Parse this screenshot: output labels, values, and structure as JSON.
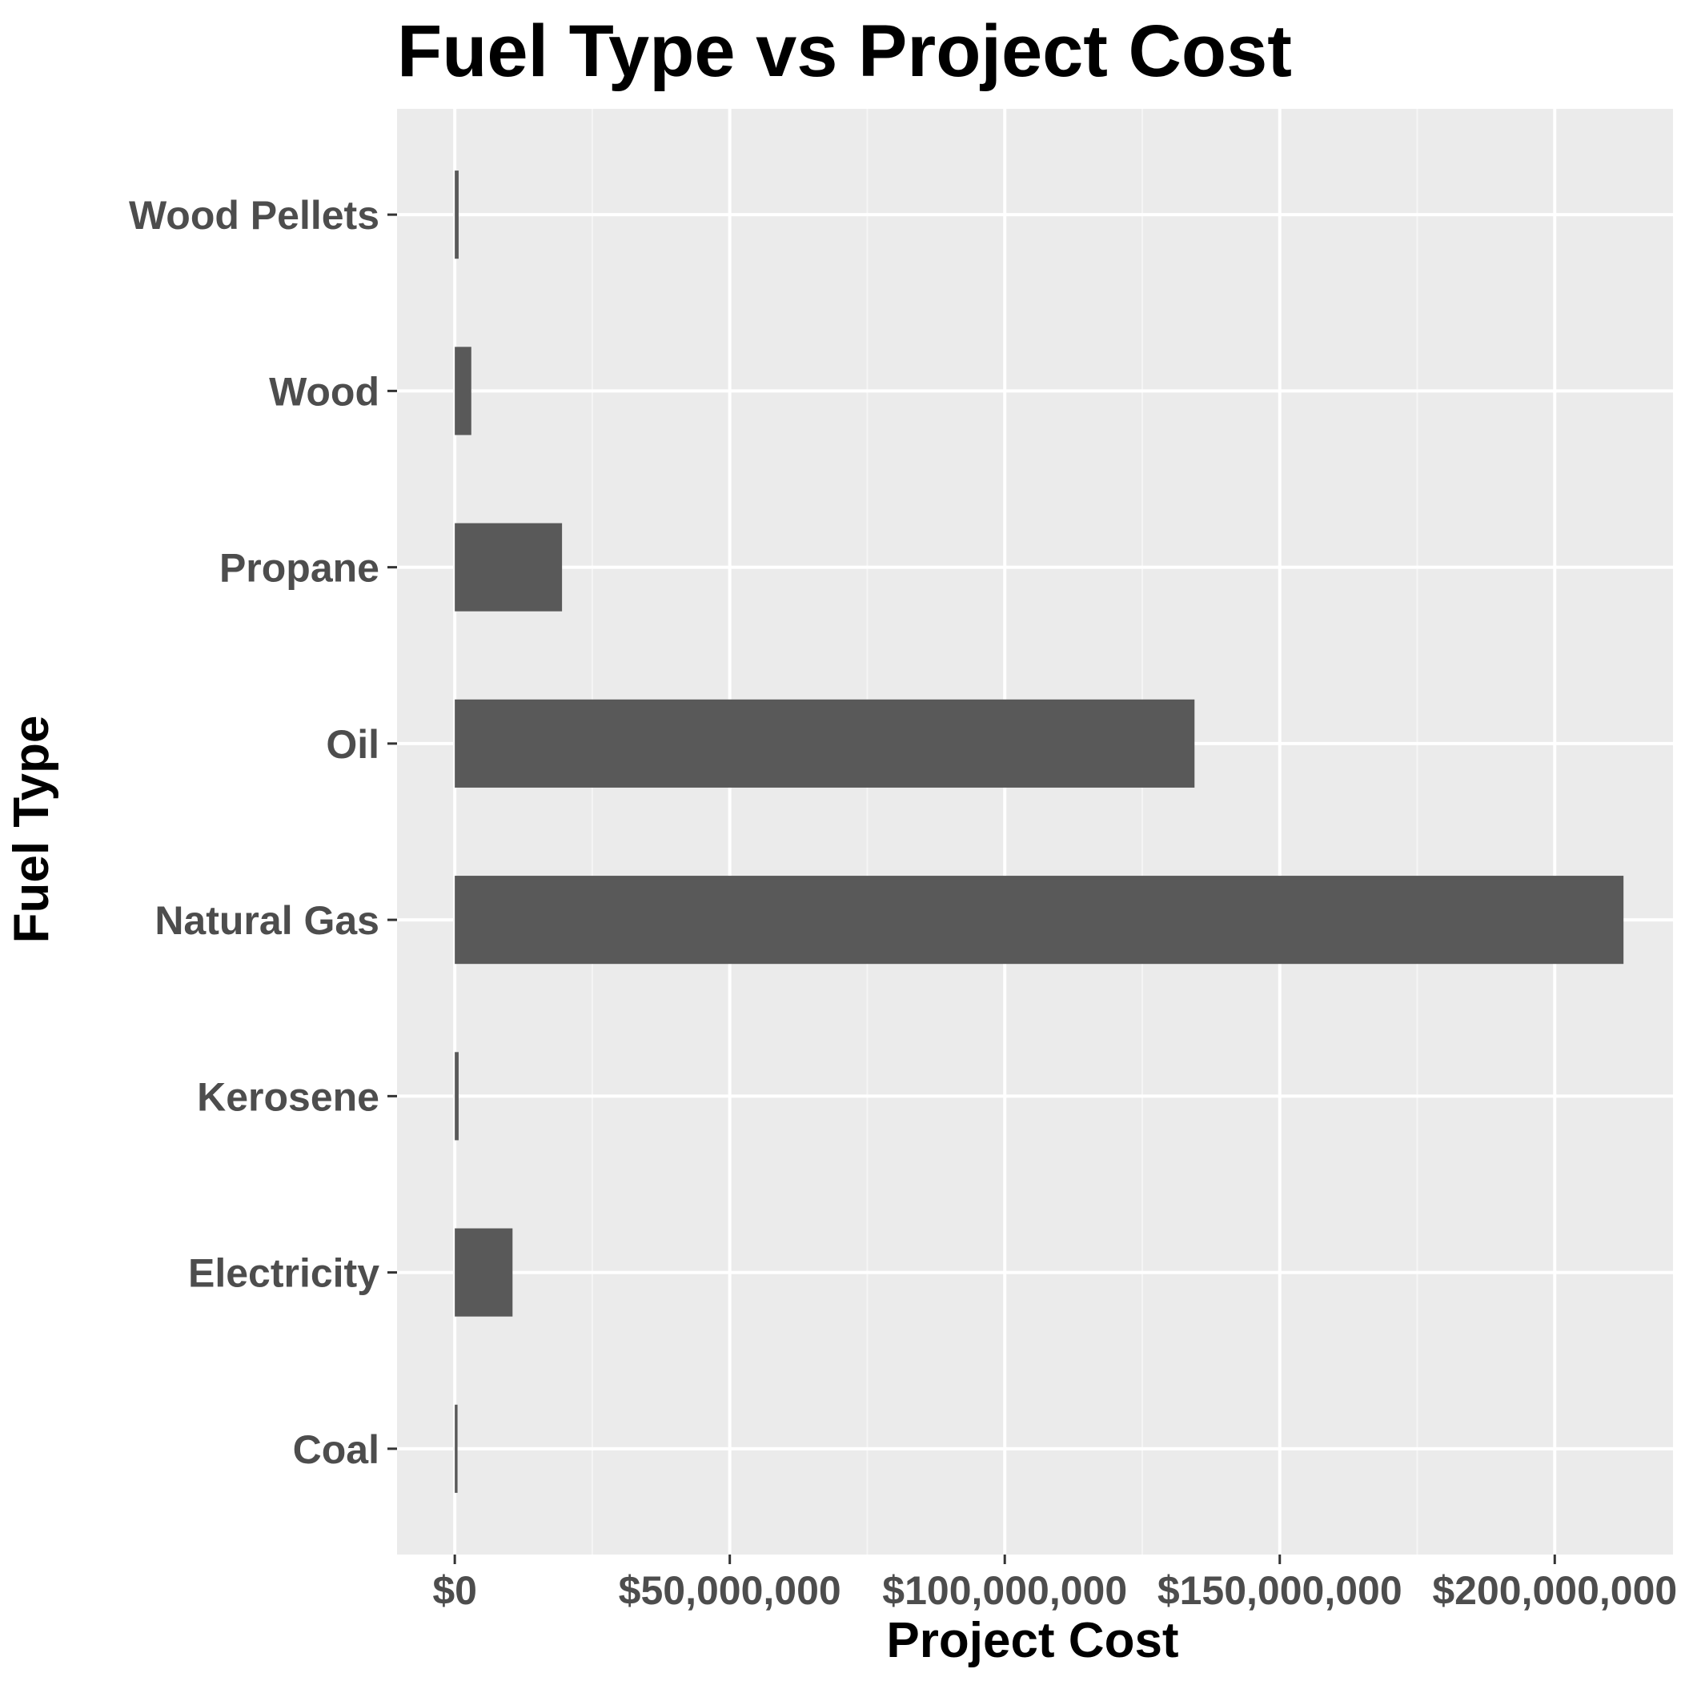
{
  "colors": {
    "panel_background": "#ebebeb",
    "grid_major": "#ffffff",
    "grid_minor": "#f5f5f5",
    "bar_fill": "#595959",
    "tick_text": "#4d4d4d",
    "tick_mark": "#333333"
  },
  "chart_data": {
    "type": "bar",
    "orientation": "horizontal",
    "title": "Fuel Type vs Project Cost",
    "xlabel": "Project Cost",
    "ylabel": "Fuel Type",
    "categories": [
      "Coal",
      "Electricity",
      "Kerosene",
      "Natural Gas",
      "Oil",
      "Propane",
      "Wood",
      "Wood Pellets"
    ],
    "values": [
      500000,
      10500000,
      700000,
      212500000,
      134500000,
      19500000,
      3000000,
      700000
    ],
    "xlim": [
      -10500000,
      221500000
    ],
    "x_ticks": [
      0,
      50000000,
      100000000,
      150000000,
      200000000
    ],
    "x_tick_labels": [
      "$0",
      "$50,000,000",
      "$100,000,000",
      "$150,000,000",
      "$200,000,000"
    ],
    "grid": true,
    "legend": "none"
  }
}
